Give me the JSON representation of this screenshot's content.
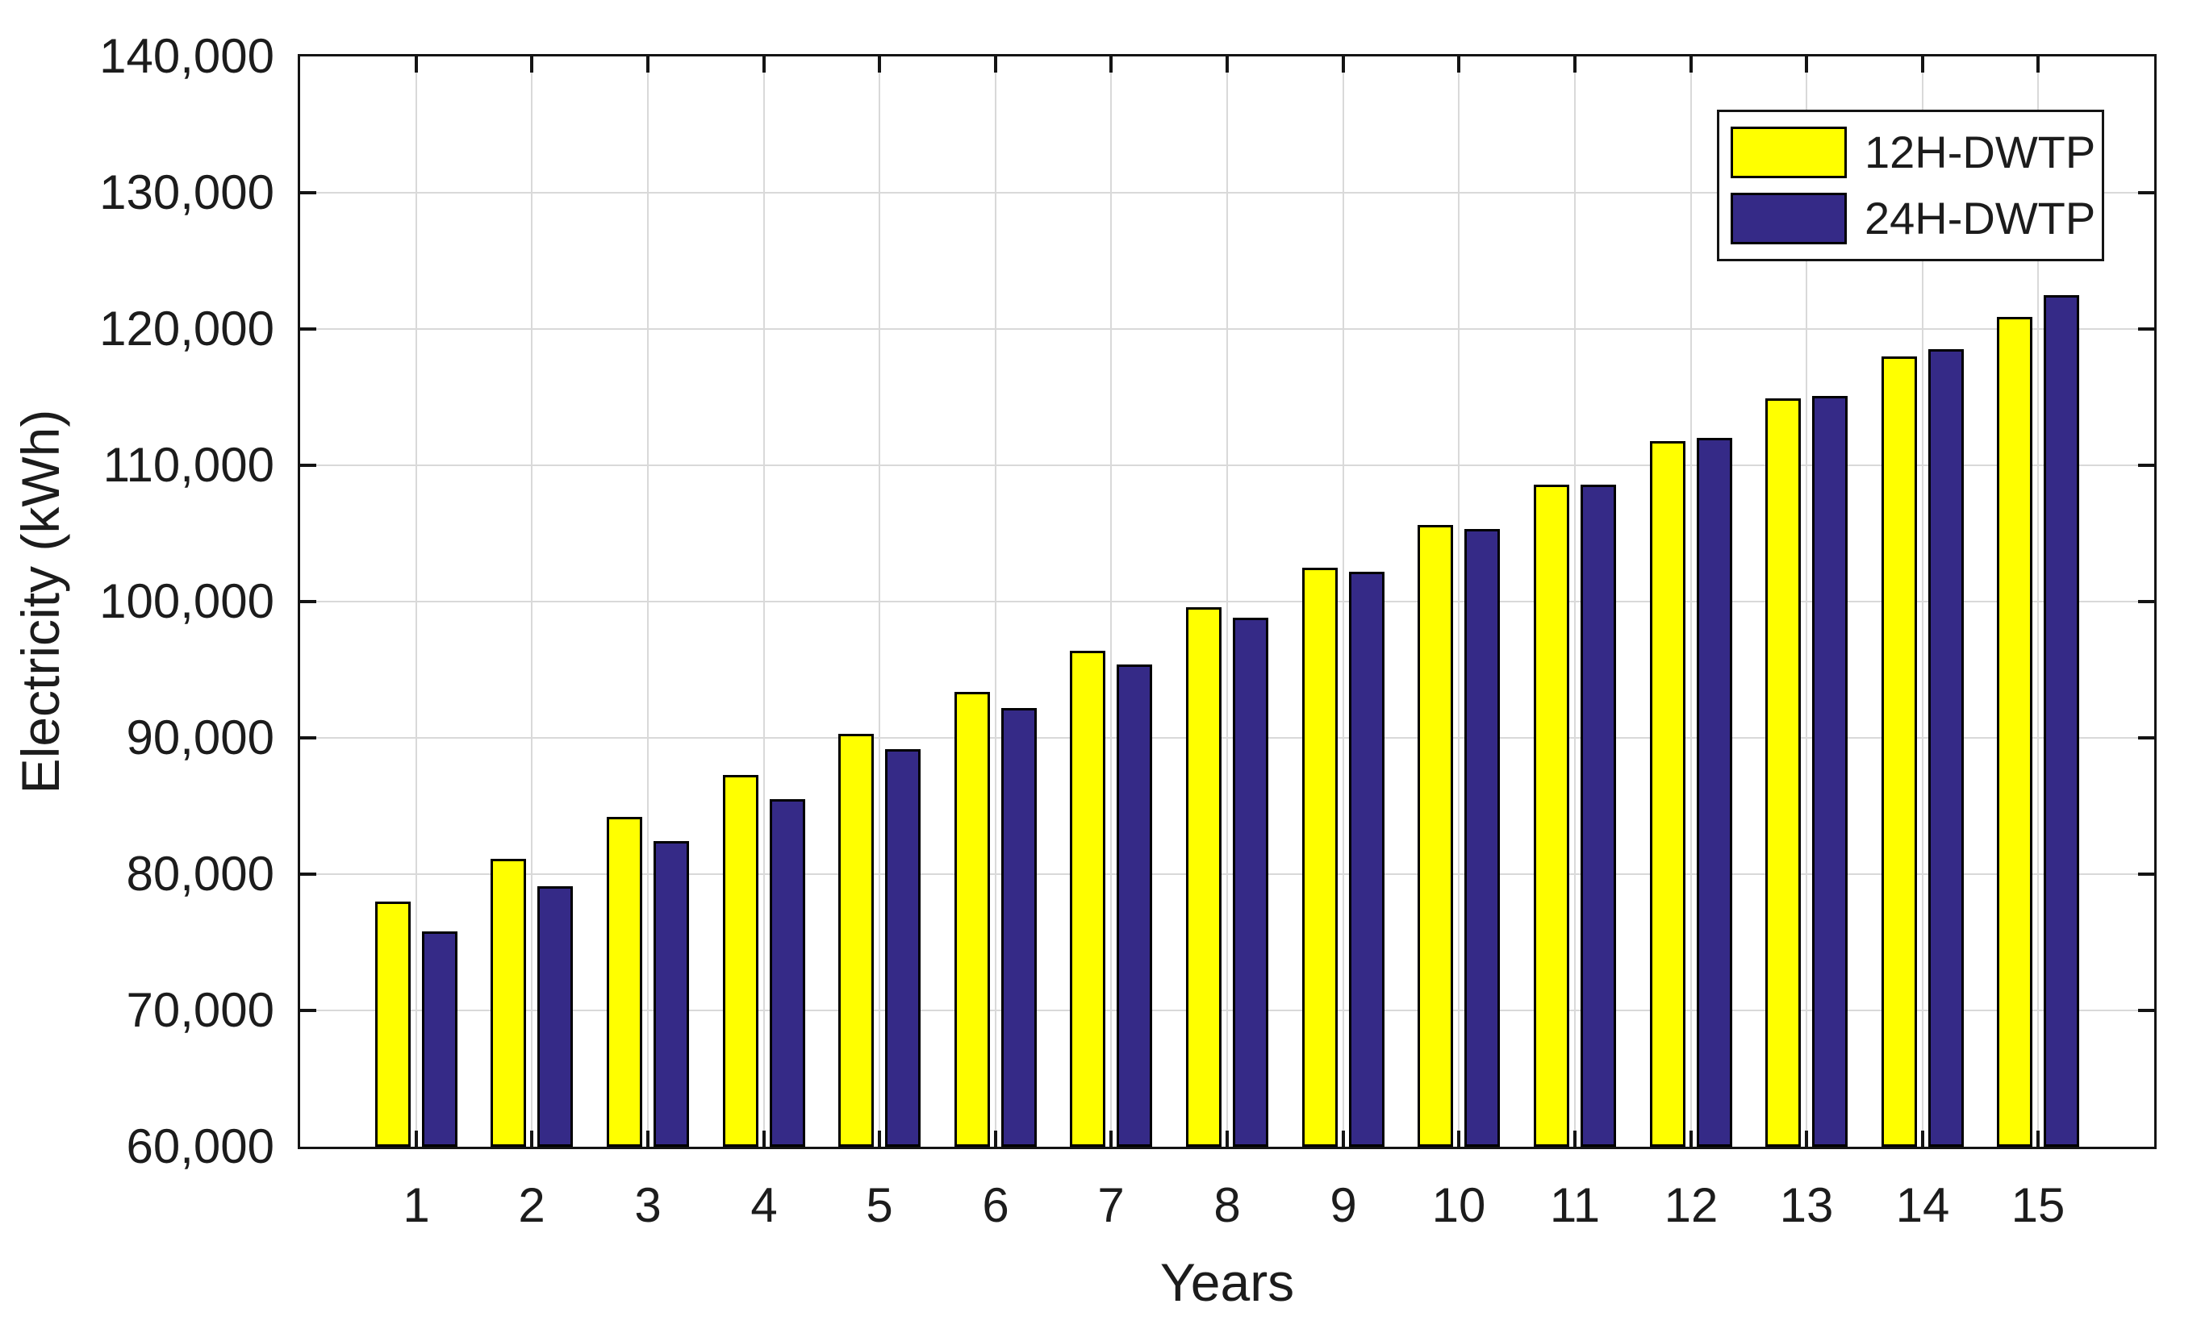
{
  "chart_data": {
    "type": "bar",
    "title": "",
    "xlabel": "Years",
    "ylabel": "Electricity (kWh)",
    "categories": [
      "1",
      "2",
      "3",
      "4",
      "5",
      "6",
      "7",
      "8",
      "9",
      "10",
      "11",
      "12",
      "13",
      "14",
      "15"
    ],
    "series": [
      {
        "name": "12H-DWTP",
        "color": "#FFFF00",
        "values": [
          78000,
          81100,
          84200,
          87300,
          90300,
          93400,
          96400,
          99600,
          102500,
          105600,
          108600,
          111800,
          114900,
          118000,
          120900
        ]
      },
      {
        "name": "24H-DWTP",
        "color": "#352A87",
        "values": [
          75800,
          79100,
          82400,
          85500,
          89200,
          92200,
          95400,
          98800,
          102200,
          105300,
          108600,
          112000,
          115100,
          118500,
          122500
        ]
      }
    ],
    "ylim": [
      60000,
      140000
    ],
    "ytick_step": 10000,
    "ytick_labels": [
      "60,000",
      "70,000",
      "80,000",
      "90,000",
      "100,000",
      "110,000",
      "120,000",
      "130,000",
      "140,000"
    ],
    "grid": true,
    "legend_position": "top-right",
    "bar_edge_color": "#000000",
    "gridline_color": "#D9D9D9",
    "axis_color": "#141414",
    "text_color": "#1c1c1c"
  }
}
